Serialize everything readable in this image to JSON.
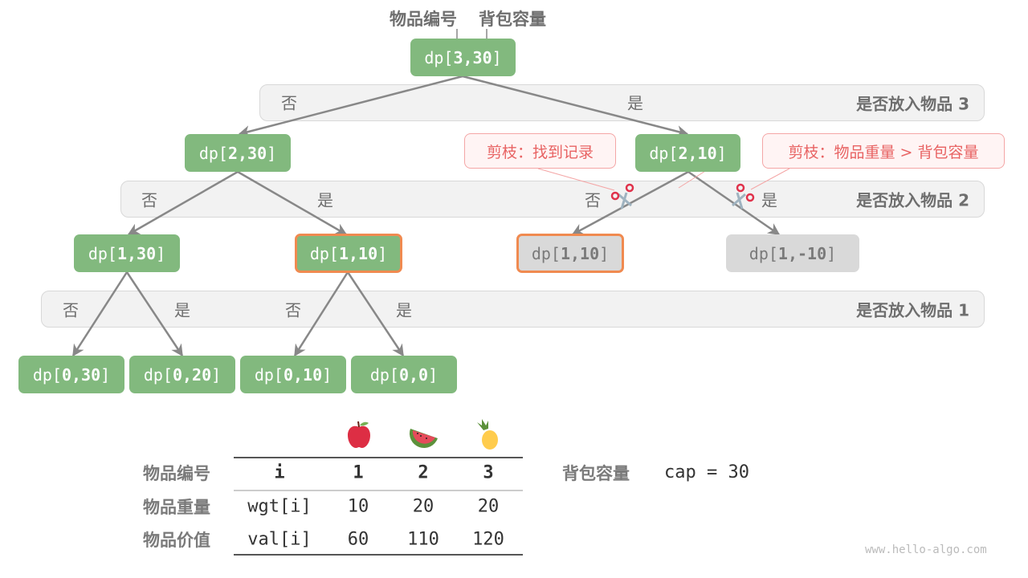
{
  "header": {
    "item_label": "物品编号",
    "capacity_label": "背包容量"
  },
  "bands": [
    {
      "title": "是否放入物品 3",
      "labels": [
        "否",
        "是"
      ]
    },
    {
      "title": "是否放入物品 2",
      "labels": [
        "否",
        "是",
        "否",
        "是"
      ]
    },
    {
      "title": "是否放入物品 1",
      "labels": [
        "否",
        "是",
        "否",
        "是"
      ]
    }
  ],
  "nodes": {
    "n330": {
      "prefix": "dp[",
      "args": "3,30",
      "suffix": "]"
    },
    "n230": {
      "prefix": "dp[",
      "args": "2,30",
      "suffix": "]"
    },
    "n210": {
      "prefix": "dp[",
      "args": "2,10",
      "suffix": "]"
    },
    "n130": {
      "prefix": "dp[",
      "args": "1,30",
      "suffix": "]"
    },
    "n110a": {
      "prefix": "dp[",
      "args": "1,10",
      "suffix": "]"
    },
    "n110b": {
      "prefix": "dp[",
      "args": "1,10",
      "suffix": "]"
    },
    "n1m10": {
      "prefix": "dp[",
      "args": "1,-10",
      "suffix": "]"
    },
    "n030": {
      "prefix": "dp[",
      "args": "0,30",
      "suffix": "]"
    },
    "n020": {
      "prefix": "dp[",
      "args": "0,20",
      "suffix": "]"
    },
    "n010": {
      "prefix": "dp[",
      "args": "0,10",
      "suffix": "]"
    },
    "n00": {
      "prefix": "dp[",
      "args": "0,0",
      "suffix": "]"
    }
  },
  "callouts": {
    "record": "剪枝：找到记录",
    "overweight": "剪枝：物品重量 > 背包容量"
  },
  "table": {
    "icons": [
      "apple-icon",
      "watermelon-icon",
      "pineapple-icon"
    ],
    "rows": [
      {
        "label": "物品编号",
        "cells": [
          "i",
          "1",
          "2",
          "3"
        ]
      },
      {
        "label": "物品重量",
        "cells": [
          "wgt[i]",
          "10",
          "20",
          "20"
        ]
      },
      {
        "label": "物品价值",
        "cells": [
          "val[i]",
          "60",
          "110",
          "120"
        ]
      }
    ]
  },
  "capacity": {
    "label": "背包容量",
    "value": "cap = 30"
  },
  "watermark": "www.hello-algo.com",
  "colors": {
    "node": "#82b97e",
    "pruned": "#d9d9d9",
    "highlight": "#f08a50",
    "callout": "#e86363"
  }
}
